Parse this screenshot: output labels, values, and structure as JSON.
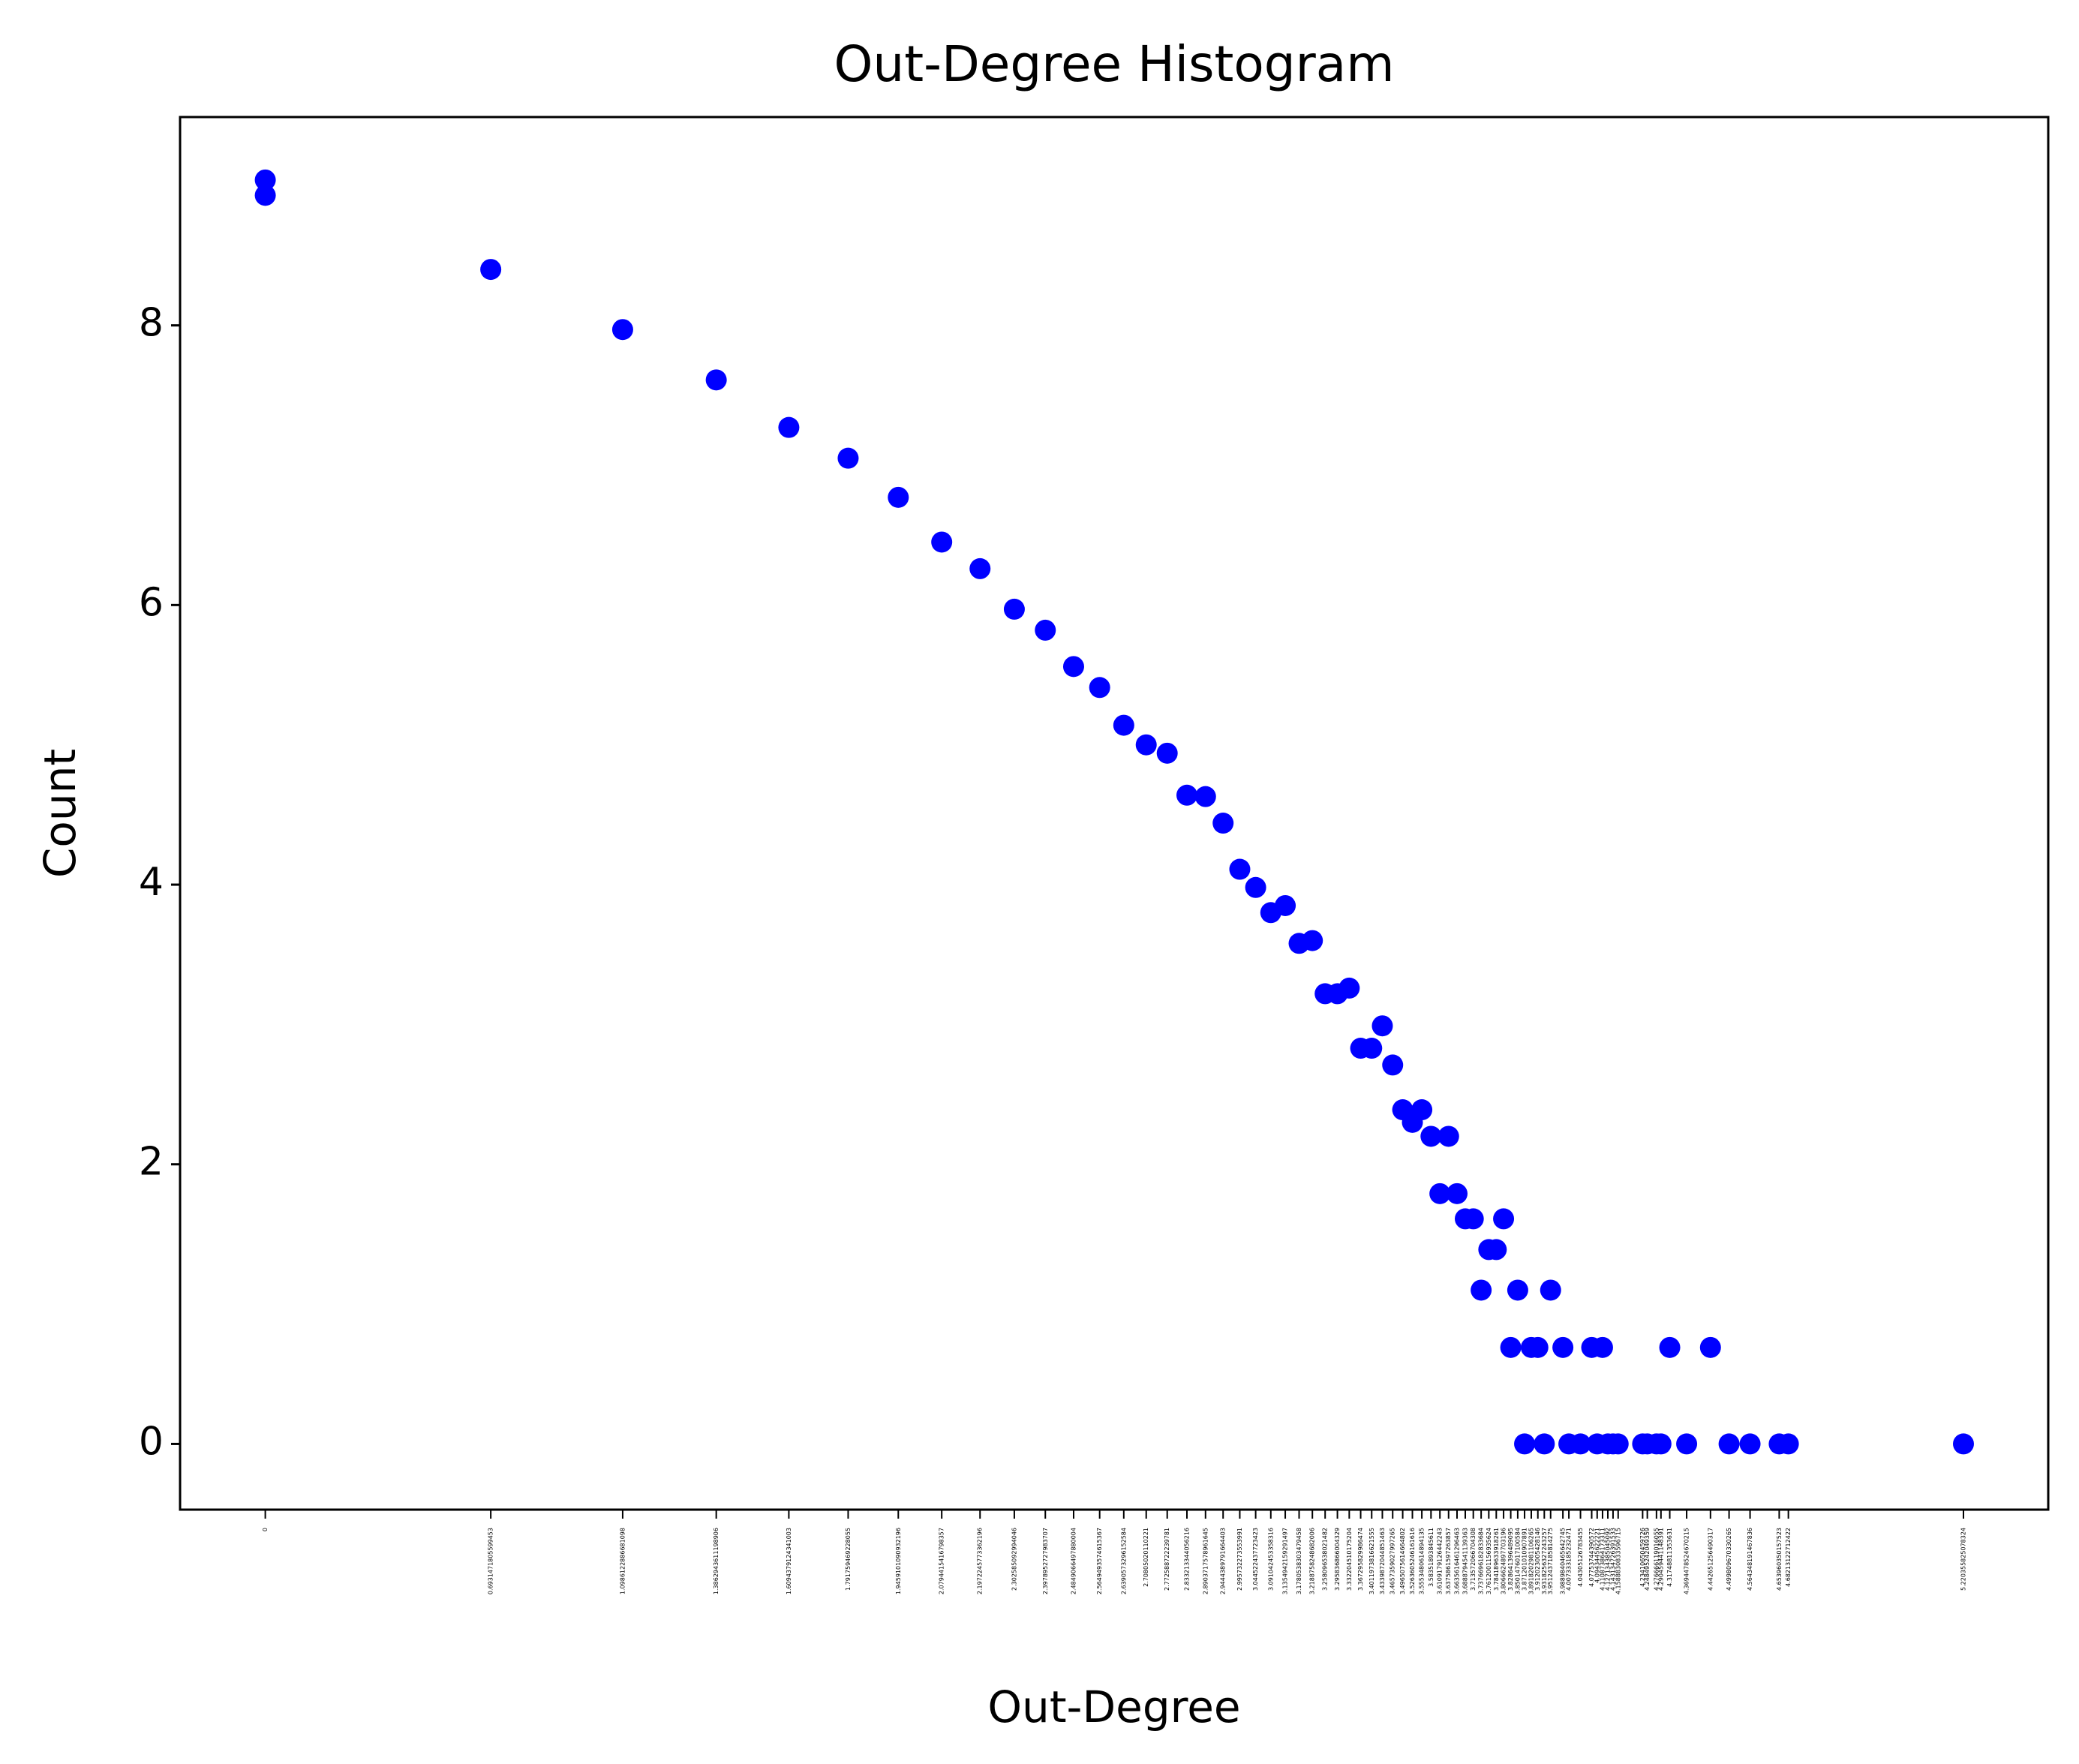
{
  "chart_data": {
    "type": "scatter",
    "title": "Out-Degree Histogram",
    "x_label": "Out-Degree",
    "y_label": "Count",
    "color": "#0000ff",
    "x": [
      0,
      0,
      0.6931471805599453,
      1.0986122886681098,
      1.3862943611198906,
      1.6094379124341003,
      1.791759469228055,
      1.9459101090932196,
      2.0794415416798357,
      2.1972245773362196,
      2.302585092994046,
      2.3978952727983707,
      2.4849066497880004,
      2.5649493574615367,
      2.6390573296152584,
      2.70805020110221,
      2.772588722239781,
      2.833213344056216,
      2.8903717578961645,
      2.9444389791664403,
      2.995732273553991,
      3.044522437723423,
      3.091042453358316,
      3.1354942159291497,
      3.1780538303479458,
      3.2188758248682006,
      3.258096538021482,
      3.295836866004329,
      3.332204510175204,
      3.367295829986474,
      3.4011973816621555,
      3.4339872044851463,
      3.4657359027997265,
      3.4965075614664802,
      3.5263605246161616,
      3.5553480614894135,
      3.58351893845611,
      3.6109179126442243,
      3.6375861597263857,
      3.6635616461296463,
      3.6888794541139363,
      3.713572066704308,
      3.7376696182833684,
      3.7612001156935624,
      3.784189633918261,
      3.8066624897703196,
      3.828641396489095,
      3.8501476017100584,
      3.871201010907891,
      3.8918202981106265,
      3.912023005428146,
      3.9318256327243257,
      3.9512437185814275,
      3.9889840465642745,
      4.007333185232471,
      4.04305126783455,
      4.07753744390572,
      4.0943445622221,
      4.110873864173311,
      4.127134385045092,
      4.143134726391533,
      4.1588830833596715,
      4.23410650459726,
      4.248495242049359,
      4.276666119016055,
      4.290459441148391,
      4.31748811353631,
      4.3694478524670215,
      4.442651256490317,
      4.499809670330265,
      4.564348191467836,
      4.653960350157523,
      4.68213122712422,
      5.220355825078324
    ],
    "values": [
      9.04,
      8.93,
      8.4,
      7.97,
      7.61,
      7.27,
      7.05,
      6.77,
      6.45,
      6.26,
      5.97,
      5.82,
      5.56,
      5.41,
      5.14,
      5.0,
      4.94,
      4.64,
      4.63,
      4.44,
      4.11,
      3.98,
      3.8,
      3.85,
      3.58,
      3.6,
      3.22,
      3.22,
      3.26,
      2.83,
      2.83,
      2.99,
      2.71,
      2.39,
      2.3,
      2.39,
      2.2,
      1.79,
      2.2,
      1.79,
      1.61,
      1.61,
      1.1,
      1.39,
      1.39,
      1.61,
      0.69,
      1.1,
      0,
      0.69,
      0.69,
      0,
      1.1,
      0.69,
      0,
      0,
      0.69,
      0,
      0.69,
      0,
      0,
      0,
      0,
      0,
      0,
      0,
      0.69,
      0,
      0.69,
      0,
      0,
      0,
      0,
      0
    ],
    "xticks": [
      0.0,
      0.6931471805599453,
      1.0986122886681098,
      1.3862943611198906,
      1.6094379124341003,
      1.791759469228055,
      1.9459101090932196,
      2.0794415416798357,
      2.1972245773362196,
      2.302585092994046,
      2.3978952727983707,
      2.4849066497880004,
      2.5649493574615367,
      2.6390573296152584,
      2.70805020110221,
      2.772588722239781,
      2.833213344056216,
      2.8903717578961645,
      2.9444389791664403,
      2.995732273553991,
      3.044522437723423,
      3.091042453358316,
      3.1354942159291497,
      3.1780538303479458,
      3.2188758248682006,
      3.258096538021482,
      3.295836866004329,
      3.332204510175204,
      3.367295829986474,
      3.4011973816621555,
      3.4339872044851463,
      3.4657359027997265,
      3.4965075614664802,
      3.5263605246161616,
      3.5553480614894135,
      3.58351893845611,
      3.6109179126442243,
      3.6375861597263857,
      3.6635616461296463,
      3.6888794541139363,
      3.713572066704308,
      3.7376696182833684,
      3.7612001156935624,
      3.784189633918261,
      3.8066624897703196,
      3.828641396489095,
      3.8501476017100584,
      3.871201010907891,
      3.8918202981106265,
      3.912023005428146,
      3.9318256327243257,
      3.9512437185814275,
      3.9889840465642745,
      4.007333185232471,
      4.04305126783455,
      4.07753744390572,
      4.0943445622221,
      4.110873864173311,
      4.127134385045092,
      4.143134726391533,
      4.1588830833596715,
      4.23410650459726,
      4.248495242049359,
      4.276666119016055,
      4.290459441148391,
      4.31748811353631,
      4.3694478524670215,
      4.442651256490317,
      4.499809670330265,
      4.564348191467836,
      4.653960350157523,
      4.68213122712422,
      5.220355825078324
    ],
    "xlim": [
      -0.262,
      5.481
    ],
    "ylim": [
      -0.47,
      9.49
    ],
    "yticks": [
      0,
      2,
      4,
      6,
      8
    ]
  }
}
